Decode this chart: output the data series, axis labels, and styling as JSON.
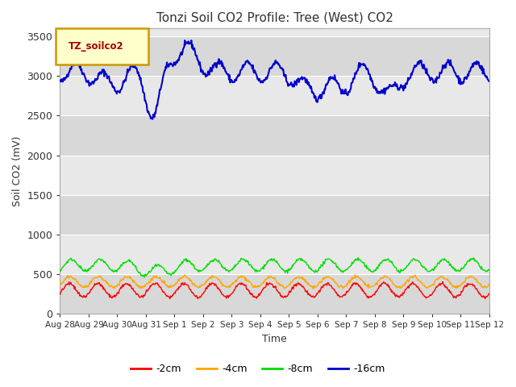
{
  "title": "Tonzi Soil CO2 Profile: Tree (West) CO2",
  "ylabel": "Soil CO2 (mV)",
  "xlabel": "Time",
  "legend_label": "TZ_soilco2",
  "ylim": [
    0,
    3600
  ],
  "yticks": [
    0,
    500,
    1000,
    1500,
    2000,
    2500,
    3000,
    3500
  ],
  "fig_bg_color": "#ffffff",
  "plot_bg_color": "#e8e8e8",
  "band_colors": [
    "#e0e0e0",
    "#d0d0d0"
  ],
  "line_colors": {
    "-2cm": "#ff0000",
    "-4cm": "#ffa500",
    "-8cm": "#00dd00",
    "-16cm": "#0000cc"
  },
  "n_days": 15,
  "x_tick_labels": [
    "Aug 28",
    "Aug 29",
    "Aug 30",
    "Aug 31",
    "Sep 1",
    "Sep 2",
    "Sep 3",
    "Sep 4",
    "Sep 5",
    "Sep 6",
    "Sep 7",
    "Sep 8",
    "Sep 9",
    "Sep 10",
    "Sep 11",
    "Sep 12"
  ]
}
